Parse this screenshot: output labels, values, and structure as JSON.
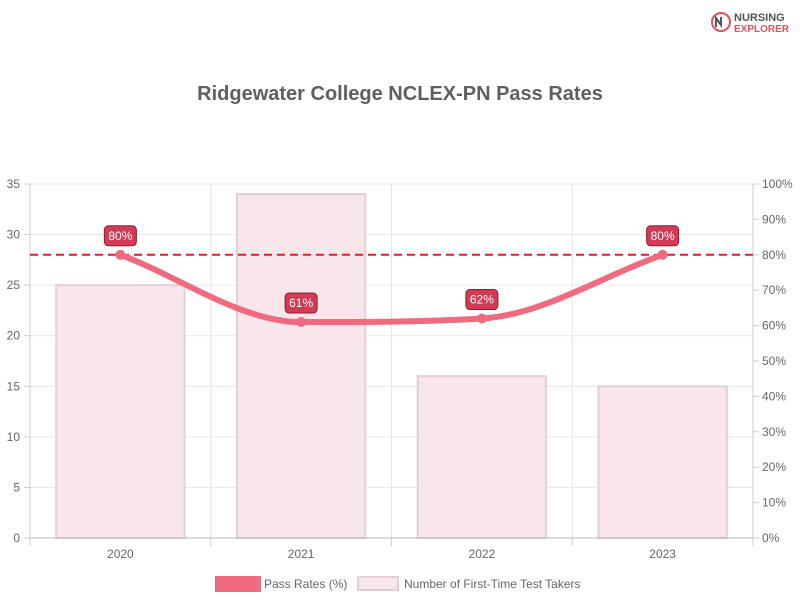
{
  "logo": {
    "line1": "NURSING",
    "line2": "EXPLORER",
    "mark": "NE",
    "colors": {
      "dark": "#555555",
      "accent": "#e0525f"
    }
  },
  "chart_data": {
    "type": "bar+line",
    "title": "Ridgewater College NCLEX-PN Pass Rates",
    "categories": [
      "2020",
      "2021",
      "2022",
      "2023"
    ],
    "left_axis": {
      "min": 0,
      "max": 35,
      "step": 5,
      "ticks": [
        "0",
        "5",
        "10",
        "15",
        "20",
        "25",
        "30",
        "35"
      ]
    },
    "right_axis": {
      "min": 0,
      "max": 100,
      "step": 10,
      "ticks": [
        "0%",
        "10%",
        "20%",
        "30%",
        "40%",
        "50%",
        "60%",
        "70%",
        "80%",
        "90%",
        "100%"
      ]
    },
    "series": [
      {
        "name": "Pass Rates (%)",
        "type": "line",
        "axis": "right",
        "values": [
          80,
          61,
          62,
          80
        ],
        "labels": [
          "80%",
          "61%",
          "62%",
          "80%"
        ],
        "color": "#f06b80"
      },
      {
        "name": "Number of First-Time Test Takers",
        "type": "bar",
        "axis": "left",
        "values": [
          25,
          34,
          16,
          15
        ],
        "color": "#f8e6ea",
        "border": "#e2cfd4"
      }
    ],
    "reference_line": {
      "value": 80,
      "axis": "right",
      "color": "#e8192c",
      "style": "dashed"
    },
    "grid": true,
    "legend_position": "bottom"
  }
}
